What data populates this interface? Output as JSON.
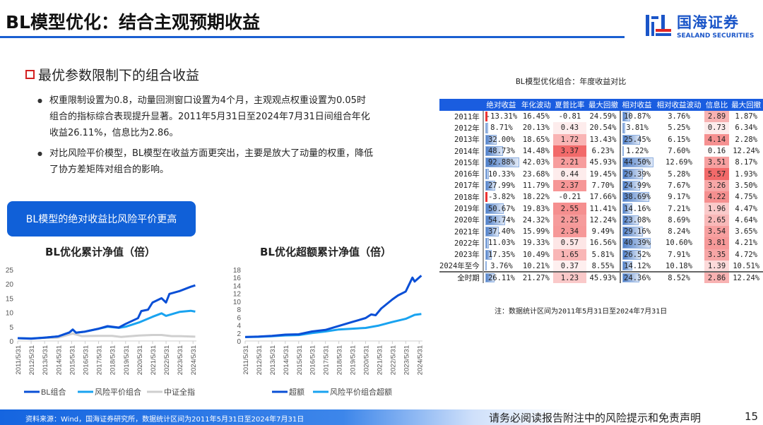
{
  "header": {
    "title": "BL模型优化：结合主观预期收益",
    "logo_cn": "国海证券",
    "logo_en": "SEALAND SECURITIES"
  },
  "section": {
    "heading": "最优参数限制下的组合收益",
    "bullets": [
      "权重限制设置为0.8，动量回测窗口设置为4个月，主观观点权重设置为0.05时组合的指标综合表现提升显著。2011年5月31日至2024年7月31日间组合年化收益26.11%，信息比为2.86。",
      "对比风险平价模型，BL模型在收益方面更突出，主要是放大了动量的权重，降低了协方差矩阵对组合的影响。"
    ]
  },
  "callout": "BL模型的绝对收益比风险平价更高",
  "chart_data": [
    {
      "type": "line",
      "title": "BL优化累计净值（倍）",
      "ylim": [
        0,
        25
      ],
      "yticks": [
        0,
        5,
        10,
        15,
        20,
        25
      ],
      "xticks": [
        "2011/5/31",
        "2012/5/31",
        "2013/5/31",
        "2014/5/31",
        "2015/5/31",
        "2016/5/31",
        "2017/5/31",
        "2018/5/31",
        "2019/5/31",
        "2020/5/31",
        "2021/5/31",
        "2022/5/31",
        "2023/5/31",
        "2024/5/31"
      ],
      "legend_position": "bottom",
      "series": [
        {
          "name": "BL组合",
          "color": "#0a4fd6",
          "x": [
            "2011-05",
            "2012-05",
            "2013-05",
            "2014-05",
            "2015-03",
            "2015-06",
            "2015-09",
            "2016-05",
            "2017-05",
            "2018-01",
            "2018-11",
            "2019-05",
            "2020-04",
            "2020-07",
            "2021-01",
            "2021-05",
            "2022-01",
            "2022-05",
            "2022-08",
            "2023-05",
            "2024-03",
            "2024-07"
          ],
          "y": [
            1,
            0.8,
            1.2,
            1.6,
            3,
            4,
            2.9,
            3.3,
            4.3,
            5.2,
            4.7,
            6,
            8,
            10.5,
            11,
            13.5,
            15,
            13.5,
            16.5,
            17.5,
            19,
            19.5
          ]
        },
        {
          "name": "风险平价组合",
          "color": "#19a3f0",
          "x": [
            "2011-05",
            "2012-05",
            "2013-05",
            "2014-05",
            "2015-03",
            "2015-06",
            "2015-09",
            "2016-05",
            "2017-05",
            "2018-01",
            "2018-11",
            "2019-05",
            "2020-05",
            "2021-05",
            "2022-01",
            "2022-05",
            "2023-05",
            "2024-03",
            "2024-07"
          ],
          "y": [
            1,
            0.9,
            1.2,
            1.6,
            3,
            4,
            2.9,
            3.3,
            4.3,
            5,
            4.6,
            5,
            6.5,
            8.5,
            9.7,
            8.8,
            10.2,
            10.6,
            10.3
          ]
        },
        {
          "name": "中证全指",
          "color": "#cfcfcf",
          "x": [
            "2011-05",
            "2012-05",
            "2013-05",
            "2014-05",
            "2015-06",
            "2016-02",
            "2017-05",
            "2018-05",
            "2019-01",
            "2020-05",
            "2021-05",
            "2022-01",
            "2022-10",
            "2023-05",
            "2024-07"
          ],
          "y": [
            1,
            0.9,
            1.1,
            1.2,
            2.6,
            1.7,
            1.8,
            1.8,
            1.4,
            1.9,
            2.1,
            2.1,
            1.7,
            1.7,
            1.5
          ]
        }
      ]
    },
    {
      "type": "line",
      "title": "BL优化超额累计净值（倍）",
      "ylim": [
        0,
        18
      ],
      "yticks": [
        0,
        2,
        4,
        6,
        8,
        10,
        12,
        14,
        16,
        18
      ],
      "xticks": [
        "2011/5/31",
        "2012/5/31",
        "2013/5/31",
        "2014/5/31",
        "2015/5/31",
        "2016/5/31",
        "2017/5/31",
        "2018/5/31",
        "2019/5/31",
        "2020/5/31",
        "2021/5/31",
        "2022/5/31",
        "2023/5/31",
        "2024/5/31"
      ],
      "legend_position": "bottom",
      "series": [
        {
          "name": "超额",
          "color": "#0a4fd6",
          "x": [
            "2011-05",
            "2012-05",
            "2013-05",
            "2014-05",
            "2015-05",
            "2016-05",
            "2017-05",
            "2018-05",
            "2019-05",
            "2020-05",
            "2020-10",
            "2021-02",
            "2021-07",
            "2022-05",
            "2022-10",
            "2023-05",
            "2023-11",
            "2024-01",
            "2024-07"
          ],
          "y": [
            1,
            1.1,
            1.3,
            1.6,
            1.7,
            2.4,
            2.8,
            3.8,
            4.8,
            5.8,
            6.7,
            6.5,
            8.2,
            10.5,
            11.5,
            12.5,
            16,
            15,
            16.5
          ]
        },
        {
          "name": "风险平价组合超额",
          "color": "#19a3f0",
          "x": [
            "2011-05",
            "2012-05",
            "2013-05",
            "2014-05",
            "2015-05",
            "2016-05",
            "2017-05",
            "2018-05",
            "2019-05",
            "2020-05",
            "2021-05",
            "2022-05",
            "2023-05",
            "2024-01",
            "2024-07"
          ],
          "y": [
            1,
            1.05,
            1.2,
            1.4,
            1.5,
            2.0,
            2.4,
            2.9,
            3.1,
            3.3,
            3.9,
            4.8,
            5.6,
            6.6,
            6.8
          ]
        }
      ]
    }
  ],
  "table": {
    "title": "BL模型优化组合：年度收益对比",
    "columns": [
      "",
      "绝对收益",
      "年化波动",
      "夏普比率",
      "最大回撤",
      "相对收益",
      "相对收益波动",
      "信息比",
      "最大回撤"
    ],
    "rows": [
      [
        "2011年",
        "-13.31%",
        "16.45%",
        "-0.81",
        "24.59%",
        "10.87%",
        "3.76%",
        "2.89",
        "1.87%"
      ],
      [
        "2012年",
        "8.71%",
        "20.13%",
        "0.43",
        "20.54%",
        "3.81%",
        "5.25%",
        "0.73",
        "6.34%"
      ],
      [
        "2013年",
        "32.00%",
        "18.65%",
        "1.72",
        "13.43%",
        "25.45%",
        "6.15%",
        "4.14",
        "2.28%"
      ],
      [
        "2014年",
        "48.73%",
        "14.48%",
        "3.37",
        "6.23%",
        "1.22%",
        "7.60%",
        "0.16",
        "12.24%"
      ],
      [
        "2015年",
        "92.88%",
        "42.03%",
        "2.21",
        "45.93%",
        "44.50%",
        "12.69%",
        "3.51",
        "8.17%"
      ],
      [
        "2016年",
        "10.33%",
        "23.68%",
        "0.44",
        "19.45%",
        "29.39%",
        "5.28%",
        "5.57",
        "1.93%"
      ],
      [
        "2017年",
        "27.99%",
        "11.79%",
        "2.37",
        "7.70%",
        "24.99%",
        "7.67%",
        "3.26",
        "3.50%"
      ],
      [
        "2018年",
        "-3.82%",
        "18.22%",
        "-0.21",
        "17.66%",
        "38.69%",
        "9.17%",
        "4.22",
        "4.75%"
      ],
      [
        "2019年",
        "50.67%",
        "19.83%",
        "2.55",
        "11.41%",
        "14.16%",
        "7.21%",
        "1.96",
        "4.47%"
      ],
      [
        "2020年",
        "54.74%",
        "24.32%",
        "2.25",
        "12.24%",
        "23.08%",
        "8.69%",
        "2.65",
        "4.64%"
      ],
      [
        "2021年",
        "37.40%",
        "15.99%",
        "2.34",
        "9.49%",
        "29.16%",
        "8.24%",
        "3.54",
        "3.65%"
      ],
      [
        "2022年",
        "11.03%",
        "19.33%",
        "0.57",
        "16.56%",
        "40.39%",
        "10.60%",
        "3.81",
        "4.21%"
      ],
      [
        "2023年",
        "17.35%",
        "10.49%",
        "1.65",
        "5.81%",
        "26.52%",
        "7.91%",
        "3.35",
        "4.72%"
      ],
      [
        "2024年至今",
        "3.76%",
        "10.21%",
        "0.37",
        "8.55%",
        "14.12%",
        "10.18%",
        "1.39",
        "10.51%"
      ],
      [
        "全时期",
        "26.11%",
        "21.27%",
        "1.23",
        "45.93%",
        "24.36%",
        "8.52%",
        "2.86",
        "12.24%"
      ]
    ],
    "note": "注：数据统计区间为2011年5月31日至2024年7月31日"
  },
  "footer": {
    "source": "资料来源：Wind，国海证券研究所，数据统计区间为2011年5月31日至2024年7月31日",
    "disclaimer": "请务必阅读报告附注中的风险提示和免责声明",
    "page": "15"
  },
  "colors": {
    "accent": "#1a5fd1",
    "bl": "#0a4fd6",
    "rp": "#19a3f0",
    "index": "#cfcfcf",
    "heat": "#f06060"
  }
}
